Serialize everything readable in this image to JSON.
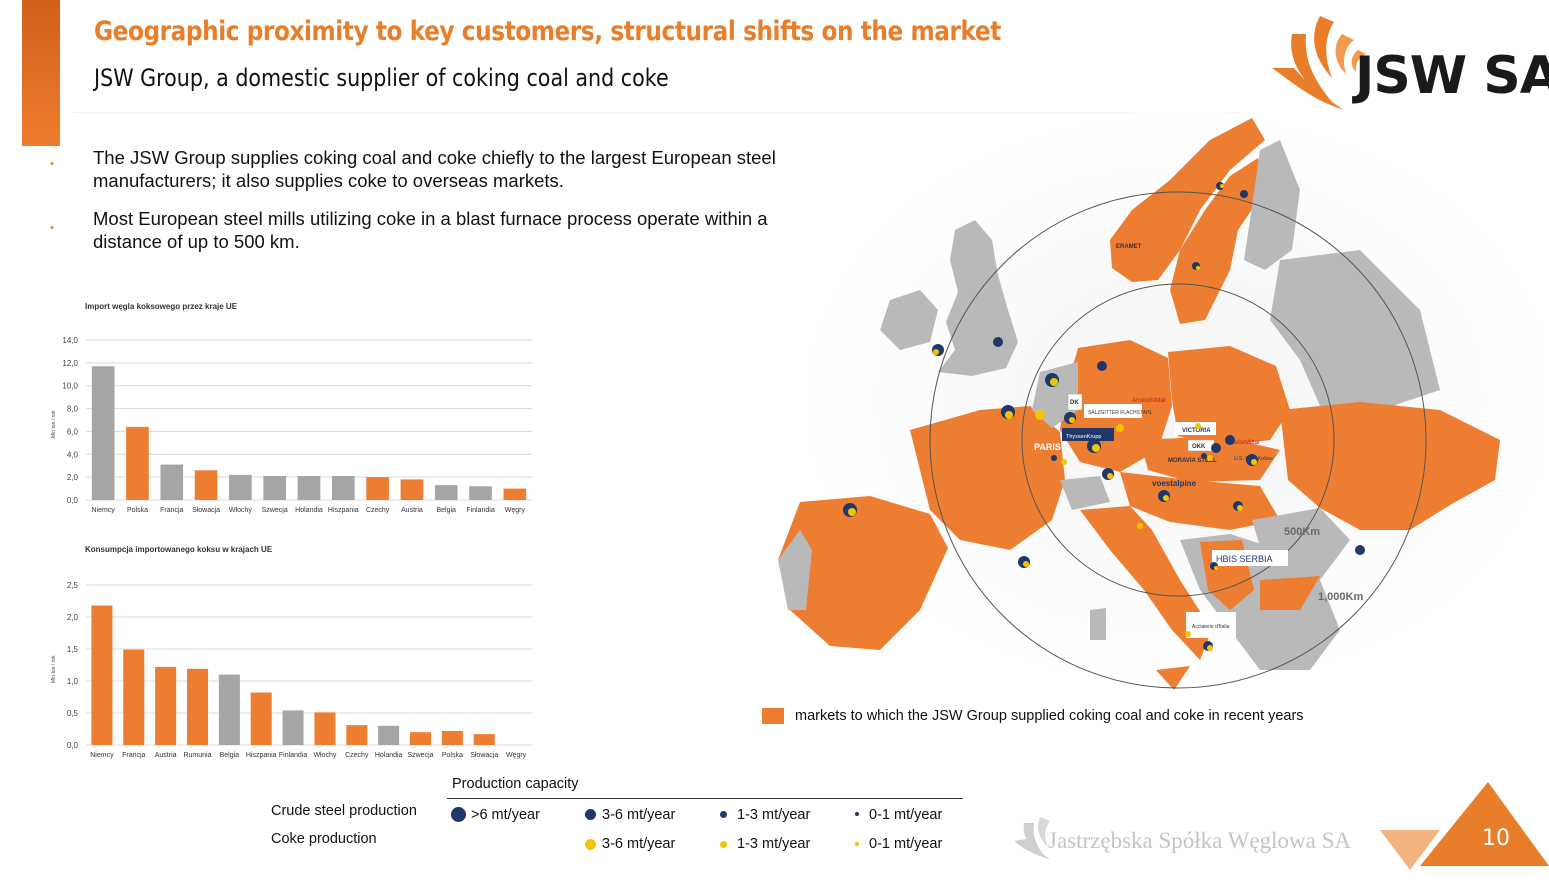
{
  "header": {
    "title": "Geographic proximity to key customers, structural shifts on the market",
    "subtitle": "JSW Group, a domestic supplier of coking coal and coke",
    "logo_text": "JSW SA"
  },
  "bullets": [
    {
      "marker": "•",
      "text": "The JSW Group supplies coking coal and coke chiefly to the largest European steel manufacturers; it also supplies coke to overseas markets."
    },
    {
      "marker": "•",
      "text": "Most European steel mills utilizing coke in a blast furnace process operate within a distance of up to 500 km."
    }
  ],
  "charts": {
    "colors": {
      "orange": "#ec7d31",
      "gray": "#a5a5a5",
      "grid": "#d9d9d9"
    }
  },
  "chart_data": [
    {
      "type": "bar",
      "title": "Import węgla koksowego przez kraje UE",
      "ylabel": "Mln ton / rok",
      "ylim": [
        0,
        14
      ],
      "yticks": [
        "0,0",
        "2,0",
        "4,0",
        "6,0",
        "8,0",
        "10,0",
        "12,0",
        "14,0"
      ],
      "categories": [
        "Niemcy",
        "Polska",
        "Francja",
        "Słowacja",
        "Włochy",
        "Szwecja",
        "Holandia",
        "Hiszpania",
        "Czechy",
        "Austria",
        "Belgia",
        "Finlandia",
        "Węgry"
      ],
      "values": [
        11.7,
        6.4,
        3.1,
        2.6,
        2.2,
        2.1,
        2.1,
        2.1,
        2.0,
        1.8,
        1.3,
        1.2,
        1.0
      ],
      "highlight": [
        false,
        true,
        false,
        true,
        false,
        false,
        false,
        false,
        true,
        true,
        false,
        false,
        true
      ],
      "grid": true
    },
    {
      "type": "bar",
      "title": "Konsumpcja importowanego koksu w krajach UE",
      "ylabel": "Mln ton / rok",
      "ylim": [
        0,
        2.5
      ],
      "yticks": [
        "0,0",
        "0,5",
        "1,0",
        "1,5",
        "2,0",
        "2,5"
      ],
      "categories": [
        "Niemcy",
        "Francja",
        "Austria",
        "Rumunia",
        "Belgia",
        "Hiszpania",
        "Finlandia",
        "Włochy",
        "Czechy",
        "Holandia",
        "Szwecja",
        "Polska",
        "Słowacja",
        "Węgry"
      ],
      "values": [
        2.18,
        1.49,
        1.22,
        1.19,
        1.1,
        0.82,
        0.54,
        0.51,
        0.31,
        0.3,
        0.2,
        0.22,
        0.17,
        0.0
      ],
      "highlight": [
        true,
        true,
        true,
        true,
        false,
        true,
        false,
        true,
        true,
        false,
        true,
        true,
        true,
        true
      ],
      "grid": true
    }
  ],
  "map": {
    "radius_labels": [
      "500Km",
      "1,000Km"
    ],
    "company_labels": [
      "ERAMET",
      "ArcelorMittal",
      "SALZGITTER FLACHSTAHL",
      "ThyssenKrupp",
      "DK",
      "VICTORIA",
      "ArcelorMittal",
      "OKK",
      "U.S. Steel Košice",
      "MORAVIA STEEL",
      "voestalpine",
      "HBIS SERBIA",
      "Acciaierie d'Italia",
      "PARIS"
    ],
    "legend_text": "markets to which the JSW Group supplied coking coal and coke in recent years"
  },
  "production": {
    "title": "Production capacity",
    "crude_label": "Crude steel production",
    "coke_label": "Coke production",
    "crude": [
      ">6 mt/year",
      "3-6 mt/year",
      "1-3 mt/year",
      "0-1 mt/year"
    ],
    "coke": [
      "3-6 mt/year",
      "1-3 mt/year",
      "0-1 mt/year"
    ],
    "colors": {
      "steel": "#1f3868",
      "coke": "#f5c400"
    }
  },
  "footer": {
    "brand": "Jastrzębska Spółka Węglowa SA",
    "page_number": "10"
  }
}
